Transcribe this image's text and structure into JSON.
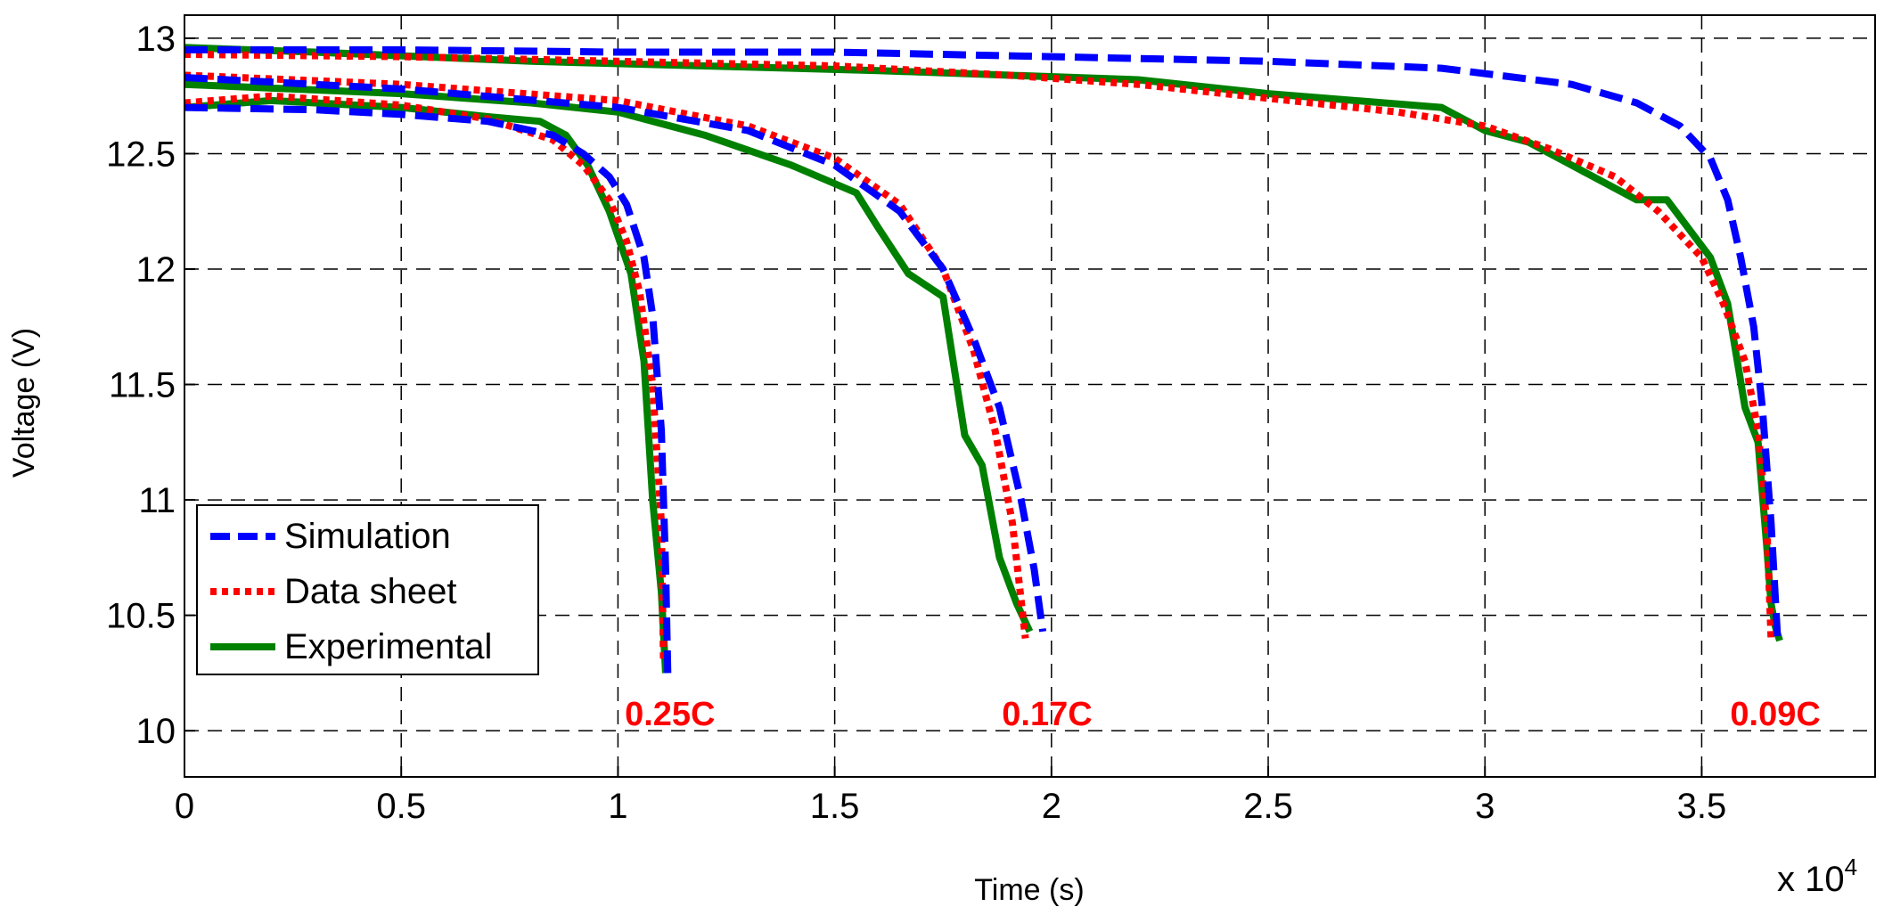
{
  "chart_data": {
    "type": "line",
    "title": "",
    "xlabel": "Time (s)",
    "ylabel": "Voltage (V)",
    "x_multiplier_label": "x 10",
    "x_multiplier_exponent": "4",
    "xlim": [
      0,
      3.9
    ],
    "ylim": [
      9.8,
      13.1
    ],
    "grid": true,
    "x_ticks": [
      0,
      0.5,
      1,
      1.5,
      2,
      2.5,
      3,
      3.5
    ],
    "x_tick_labels": [
      "0",
      "0.5",
      "1",
      "1.5",
      "2",
      "2.5",
      "3",
      "3.5"
    ],
    "y_ticks": [
      10,
      10.5,
      11,
      11.5,
      12,
      12.5,
      13
    ],
    "y_tick_labels": [
      "10",
      "10.5",
      "11",
      "11.5",
      "12",
      "12.5",
      "13"
    ],
    "legend": {
      "position": "lower-left",
      "entries": [
        {
          "label": "Simulation",
          "series": "Simulation"
        },
        {
          "label": "Data sheet",
          "series": "Data sheet"
        },
        {
          "label": "Experimental",
          "series": "Experimental"
        }
      ]
    },
    "annotations": [
      {
        "text": "0.25C",
        "x": 1.12,
        "y": 10.07,
        "color": "#ff0000"
      },
      {
        "text": "0.17C",
        "x": 1.99,
        "y": 10.07,
        "color": "#ff0000"
      },
      {
        "text": "0.09C",
        "x": 3.67,
        "y": 10.07,
        "color": "#ff0000"
      }
    ],
    "series": [
      {
        "name": "Simulation",
        "rate": "0.25C",
        "color": "#0000ff",
        "dash": "dashed",
        "x": [
          0,
          0.3,
          0.5,
          0.7,
          0.85,
          0.92,
          0.98,
          1.02,
          1.06,
          1.08,
          1.1,
          1.11,
          1.115
        ],
        "y": [
          12.7,
          12.69,
          12.67,
          12.64,
          12.58,
          12.5,
          12.4,
          12.28,
          12.05,
          11.8,
          11.3,
          10.7,
          10.25
        ]
      },
      {
        "name": "Data sheet",
        "rate": "0.25C",
        "color": "#ff0000",
        "dash": "dotted",
        "x": [
          0,
          0.2,
          0.5,
          0.7,
          0.85,
          0.92,
          0.98,
          1.02,
          1.05,
          1.08,
          1.1,
          1.105
        ],
        "y": [
          12.72,
          12.75,
          12.71,
          12.65,
          12.56,
          12.45,
          12.3,
          12.12,
          11.9,
          11.5,
          10.9,
          10.3
        ]
      },
      {
        "name": "Experimental",
        "rate": "0.25C",
        "color": "#008000",
        "dash": "solid",
        "x": [
          0,
          0.2,
          0.5,
          0.7,
          0.82,
          0.88,
          0.93,
          0.98,
          1.03,
          1.06,
          1.08,
          1.1,
          1.11
        ],
        "y": [
          12.7,
          12.73,
          12.7,
          12.66,
          12.64,
          12.58,
          12.45,
          12.25,
          11.98,
          11.6,
          11.0,
          10.6,
          10.25
        ]
      },
      {
        "name": "Simulation",
        "rate": "0.17C",
        "color": "#0000ff",
        "dash": "dashed",
        "x": [
          0,
          0.5,
          1.0,
          1.3,
          1.5,
          1.65,
          1.75,
          1.82,
          1.88,
          1.93,
          1.96,
          1.98
        ],
        "y": [
          12.83,
          12.78,
          12.7,
          12.6,
          12.45,
          12.25,
          12.0,
          11.7,
          11.4,
          11.0,
          10.7,
          10.43
        ]
      },
      {
        "name": "Data sheet",
        "rate": "0.17C",
        "color": "#ff0000",
        "dash": "dotted",
        "x": [
          0,
          0.5,
          1.0,
          1.3,
          1.5,
          1.65,
          1.75,
          1.82,
          1.87,
          1.91,
          1.94
        ],
        "y": [
          12.84,
          12.8,
          12.73,
          12.62,
          12.48,
          12.28,
          12.0,
          11.65,
          11.3,
          10.9,
          10.4
        ]
      },
      {
        "name": "Experimental",
        "rate": "0.17C",
        "color": "#008000",
        "dash": "solid",
        "x": [
          0,
          0.5,
          0.8,
          1.0,
          1.2,
          1.4,
          1.55,
          1.6,
          1.67,
          1.75,
          1.8,
          1.84,
          1.88,
          1.92,
          1.95
        ],
        "y": [
          12.8,
          12.76,
          12.72,
          12.68,
          12.58,
          12.45,
          12.33,
          12.18,
          11.98,
          11.88,
          11.28,
          11.15,
          10.75,
          10.55,
          10.43
        ]
      },
      {
        "name": "Simulation",
        "rate": "0.09C",
        "color": "#0000ff",
        "dash": "dashed",
        "x": [
          0,
          0.5,
          1.0,
          1.5,
          2.0,
          2.5,
          2.9,
          3.2,
          3.35,
          3.45,
          3.52,
          3.56,
          3.59,
          3.62,
          3.64,
          3.66,
          3.675
        ],
        "y": [
          12.95,
          12.95,
          12.94,
          12.94,
          12.92,
          12.9,
          12.87,
          12.8,
          12.72,
          12.62,
          12.48,
          12.3,
          12.05,
          11.75,
          11.4,
          10.9,
          10.4
        ]
      },
      {
        "name": "Data sheet",
        "rate": "0.09C",
        "color": "#ff0000",
        "dash": "dotted",
        "x": [
          0,
          0.5,
          1.0,
          1.5,
          1.9,
          2.2,
          2.5,
          2.8,
          3.0,
          3.15,
          3.3,
          3.4,
          3.5,
          3.55,
          3.6,
          3.63,
          3.65,
          3.66
        ],
        "y": [
          12.93,
          12.92,
          12.9,
          12.88,
          12.84,
          12.8,
          12.74,
          12.68,
          12.62,
          12.52,
          12.4,
          12.25,
          12.05,
          11.85,
          11.6,
          11.3,
          10.9,
          10.4
        ]
      },
      {
        "name": "Experimental",
        "rate": "0.09C",
        "color": "#008000",
        "dash": "solid",
        "x": [
          0,
          0.3,
          0.8,
          1.2,
          1.6,
          1.9,
          2.2,
          2.5,
          2.9,
          3.0,
          3.1,
          3.2,
          3.35,
          3.42,
          3.48,
          3.52,
          3.56,
          3.6,
          3.63,
          3.65,
          3.66,
          3.67,
          3.68
        ],
        "y": [
          12.96,
          12.94,
          12.9,
          12.88,
          12.86,
          12.84,
          12.82,
          12.76,
          12.7,
          12.6,
          12.55,
          12.45,
          12.3,
          12.3,
          12.15,
          12.05,
          11.85,
          11.4,
          11.25,
          10.8,
          10.55,
          10.45,
          10.39
        ]
      }
    ]
  }
}
